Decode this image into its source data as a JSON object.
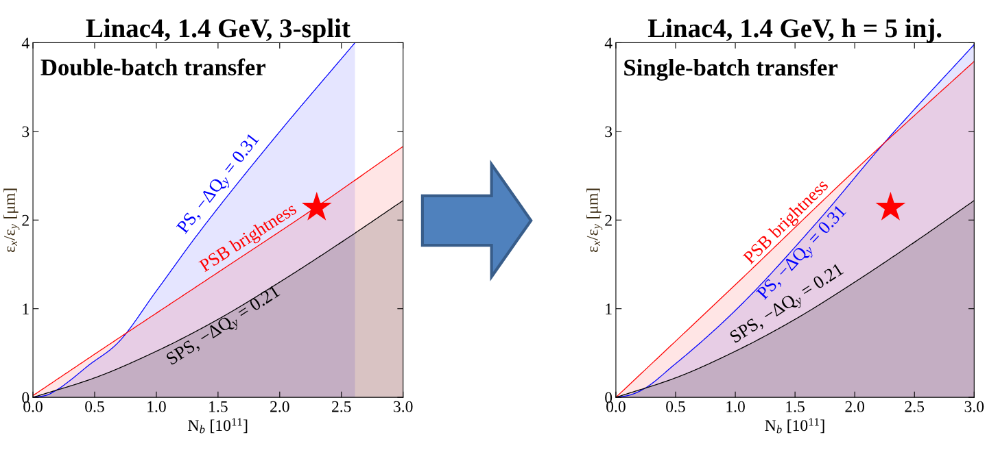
{
  "chart_data": [
    {
      "type": "area",
      "title": "Linac4, 1.4 GeV, 3-split",
      "xlabel": "N$_{b}$ [10$^{11}$]",
      "ylabel": "ε$_{x}$/ε$_{y}$ [μm]",
      "xlim": [
        0,
        3
      ],
      "ylim": [
        0,
        4
      ],
      "xticks": [
        {
          "value": 0,
          "label": "0.0"
        },
        {
          "value": 0.5,
          "label": "0.5"
        },
        {
          "value": 1,
          "label": "1.0"
        },
        {
          "value": 1.5,
          "label": "1.5"
        },
        {
          "value": 2,
          "label": "2.0"
        },
        {
          "value": 2.5,
          "label": "2.5"
        },
        {
          "value": 3,
          "label": "3.0"
        }
      ],
      "yticks": [
        0,
        1,
        2,
        3,
        4
      ],
      "series": [
        {
          "type": "area",
          "color": "#0000ff",
          "x": [
            0,
            0.1,
            0.2,
            0.3,
            0.45,
            0.67,
            1.0,
            1.33,
            1.96,
            2.61
          ],
          "values": [
            0,
            0.02,
            0.09,
            0.19,
            0.36,
            0.59,
            1.2,
            1.83,
            2.93,
            4.0
          ]
        },
        {
          "type": "area",
          "color": "#ff0000",
          "x": [
            0,
            0.6,
            1.5,
            2.3,
            3
          ],
          "values": [
            0.02,
            0.58,
            1.41,
            2.15,
            2.83
          ]
        },
        {
          "type": "area",
          "color": "#000000",
          "x": [
            0,
            0.5,
            1,
            1.5,
            2,
            2.5,
            3
          ],
          "values": [
            0,
            0.22,
            0.52,
            0.88,
            1.3,
            1.75,
            2.22
          ]
        },
        {
          "type": "scatter",
          "marker": "star",
          "color": "#ff0000",
          "x": [
            2.3
          ],
          "values": [
            2.14
          ]
        }
      ],
      "annotations": [
        "Double-batch transfer",
        "PS, −ΔQ$_{y}$ = 0.31",
        "PSB brightness",
        "SPS, −ΔQ$_{y}$ = 0.21"
      ]
    },
    {
      "type": "area",
      "title": "Linac4, 1.4 GeV, h = 5 inj.",
      "xlabel": "N$_{b}$ [10$^{11}$]",
      "ylabel": "ε$_{x}$/ε$_{y}$ [μm]",
      "xlim": [
        0,
        3
      ],
      "ylim": [
        0,
        4
      ],
      "xticks": [
        {
          "value": 0,
          "label": "0.0"
        },
        {
          "value": 0.5,
          "label": "0.5"
        },
        {
          "value": 1,
          "label": "1.0"
        },
        {
          "value": 1.5,
          "label": "1.5"
        },
        {
          "value": 2,
          "label": "2.0"
        },
        {
          "value": 2.5,
          "label": "2.5"
        },
        {
          "value": 3,
          "label": "3.0"
        }
      ],
      "yticks": [
        0,
        1,
        2,
        3,
        4
      ],
      "series": [
        {
          "type": "area",
          "color": "#0000ff",
          "x": [
            0,
            0.1,
            0.2,
            0.5,
            1.0,
            1.7,
            2.24,
            3
          ],
          "values": [
            0,
            0.02,
            0.07,
            0.38,
            0.98,
            2.0,
            2.86,
            3.98
          ]
        },
        {
          "type": "area",
          "color": "#ff0000",
          "x": [
            0,
            1,
            2,
            2.24,
            3
          ],
          "values": [
            0,
            1.27,
            2.56,
            2.86,
            3.79
          ]
        },
        {
          "type": "area",
          "color": "#000000",
          "x": [
            0,
            0.5,
            1,
            1.5,
            2,
            2.5,
            3
          ],
          "values": [
            0,
            0.22,
            0.52,
            0.88,
            1.3,
            1.75,
            2.22
          ]
        },
        {
          "type": "scatter",
          "marker": "star",
          "color": "#ff0000",
          "x": [
            2.3
          ],
          "values": [
            2.14
          ]
        }
      ],
      "annotations": [
        "Single-batch transfer",
        "PSB brightness",
        "PS, −ΔQ$_{y}$ = 0.31",
        "SPS, −ΔQ$_{y}$ = 0.21"
      ]
    }
  ]
}
